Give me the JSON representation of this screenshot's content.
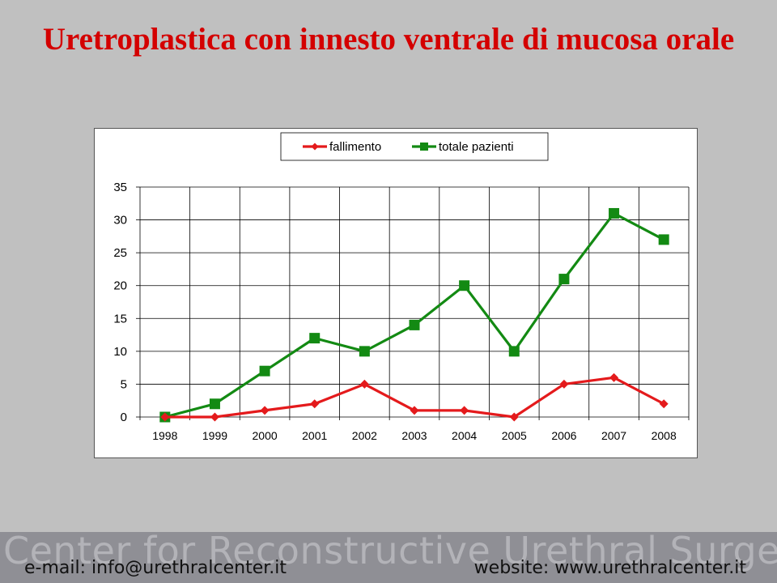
{
  "slide": {
    "title": "Uretroplastica con innesto ventrale di mucosa orale"
  },
  "chart_data": {
    "type": "line",
    "categories": [
      "1998",
      "1999",
      "2000",
      "2001",
      "2002",
      "2003",
      "2004",
      "2005",
      "2006",
      "2007",
      "2008"
    ],
    "series": [
      {
        "name": "fallimento",
        "color": "#e41a1c",
        "marker": "diamond",
        "values": [
          0,
          0,
          1,
          2,
          5,
          1,
          1,
          0,
          5,
          6,
          2
        ]
      },
      {
        "name": "totale pazienti",
        "color": "#138a13",
        "marker": "square",
        "values": [
          0,
          2,
          7,
          12,
          10,
          14,
          20,
          10,
          21,
          31,
          27
        ]
      }
    ],
    "ylim": [
      0,
      35
    ],
    "yticks": [
      0,
      5,
      10,
      15,
      20,
      25,
      30,
      35
    ],
    "grid": true,
    "legend_position": "top"
  },
  "footer": {
    "watermark": "Center for Reconstructive Urethral Surgery",
    "email": "e-mail: info@urethralcenter.it",
    "website": "website: www.urethralcenter.it"
  }
}
